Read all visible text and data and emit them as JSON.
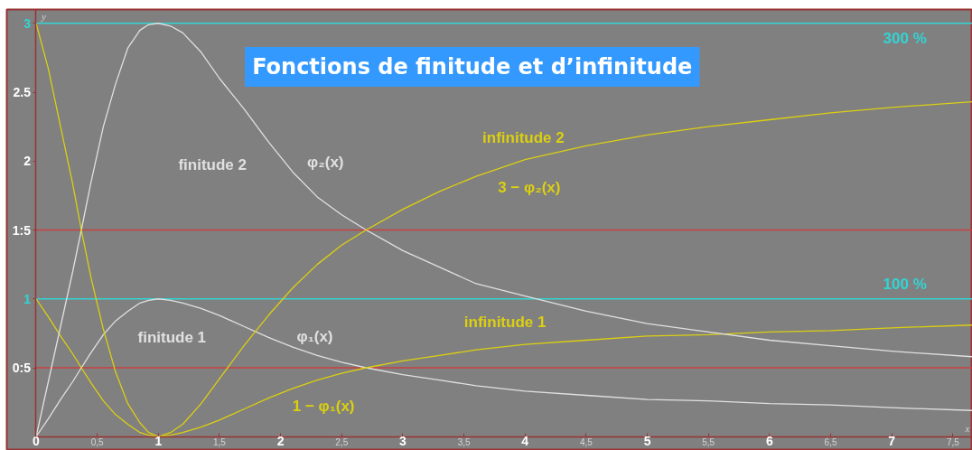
{
  "chart_data": {
    "type": "line",
    "title": "Fonctions de finitude et d’infinitude",
    "xlabel": "x",
    "ylabel": "y",
    "x": [
      0,
      0.1,
      0.2,
      0.3,
      0.37,
      0.45,
      0.55,
      0.65,
      0.75,
      0.85,
      0.92,
      1,
      1.1,
      1.2,
      1.35,
      1.5,
      1.7,
      1.9,
      2.1,
      2.3,
      2.5,
      2.7,
      3,
      3.3,
      3.6,
      4,
      4.5,
      5,
      5.5,
      6,
      6.5,
      7,
      7.66
    ],
    "series": [
      {
        "color": "#e0e0e0",
        "values": [
          0,
          0.13,
          0.27,
          0.4,
          0.5,
          0.61,
          0.74,
          0.84,
          0.91,
          0.97,
          0.99,
          1,
          0.99,
          0.97,
          0.93,
          0.88,
          0.8,
          0.72,
          0.65,
          0.59,
          0.54,
          0.5,
          0.45,
          0.41,
          0.37,
          0.33,
          0.3,
          0.27,
          0.26,
          0.24,
          0.23,
          0.21,
          0.19
        ]
      },
      {
        "color": "#dccf10",
        "values": [
          1,
          0.87,
          0.73,
          0.6,
          0.5,
          0.39,
          0.26,
          0.16,
          0.09,
          0.03,
          0.01,
          0,
          0.01,
          0.03,
          0.07,
          0.12,
          0.2,
          0.28,
          0.35,
          0.41,
          0.46,
          0.5,
          0.55,
          0.59,
          0.63,
          0.67,
          0.7,
          0.73,
          0.74,
          0.76,
          0.77,
          0.79,
          0.81
        ]
      },
      {
        "color": "#e0e0e0",
        "values": [
          0,
          0.4,
          0.8,
          1.2,
          1.5,
          1.85,
          2.25,
          2.56,
          2.82,
          2.95,
          2.99,
          3,
          2.98,
          2.93,
          2.79,
          2.6,
          2.38,
          2.14,
          1.92,
          1.74,
          1.61,
          1.5,
          1.35,
          1.23,
          1.11,
          1.02,
          0.91,
          0.82,
          0.76,
          0.7,
          0.66,
          0.62,
          0.58
        ]
      },
      {
        "color": "#dccf10",
        "values": [
          3,
          2.67,
          2.25,
          1.83,
          1.5,
          1.15,
          0.78,
          0.47,
          0.24,
          0.1,
          0.03,
          0,
          0.03,
          0.09,
          0.24,
          0.42,
          0.66,
          0.88,
          1.08,
          1.25,
          1.39,
          1.5,
          1.65,
          1.78,
          1.89,
          2.01,
          2.11,
          2.19,
          2.25,
          2.3,
          2.35,
          2.39,
          2.43
        ]
      }
    ],
    "xlim": [
      -0.24,
      7.66
    ],
    "ylim": [
      -0.1,
      3.1
    ],
    "xticks": [
      0,
      {
        "value": 0.5,
        "label": "0,5"
      },
      1,
      {
        "value": 1.5,
        "label": "1,5"
      },
      2,
      {
        "value": 2.5,
        "label": "2,5"
      },
      3,
      {
        "value": 3.5,
        "label": "3,5"
      },
      4,
      {
        "value": 4.5,
        "label": "4,5"
      },
      5,
      {
        "value": 5.5,
        "label": "5,5"
      },
      6,
      {
        "value": 6.5,
        "label": "6,5"
      },
      7,
      {
        "value": 7.5,
        "label": "7,5"
      }
    ],
    "yticks": [
      {
        "value": 0.5,
        "label": "0:5"
      },
      1,
      {
        "value": 1.5,
        "label": "1:5"
      },
      2,
      2.5,
      3
    ],
    "ref_lines": [
      {
        "axis": "y",
        "value": 3,
        "label": "300 %",
        "color": "#33d4d4"
      },
      {
        "axis": "y",
        "value": 1,
        "label": "100 %",
        "color": "#33d4d4"
      },
      {
        "axis": "y",
        "value": 1.5,
        "color": "#c84040"
      },
      {
        "axis": "y",
        "value": 0.5,
        "color": "#c84040"
      }
    ],
    "annotations": [
      "finitude 2",
      "φ₂(x)",
      "infinitude 2",
      "3 − φ₂(x)",
      "finitude 1",
      "φ₁(x)",
      "infinitude 1",
      "1 − φ₁(x)"
    ],
    "grid": false,
    "marker": "none",
    "line_style": "solid"
  }
}
